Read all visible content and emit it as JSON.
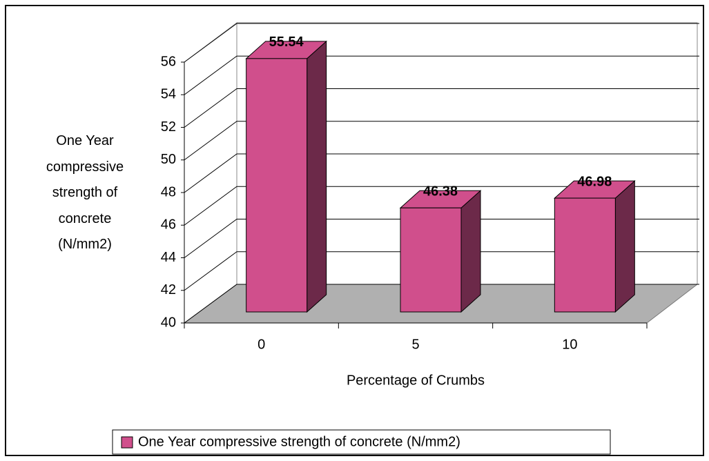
{
  "chart_data": {
    "type": "bar3d",
    "x_label": "Percentage of Crumbs",
    "y_label": "One Year compressive strength of concrete (N/mm2)",
    "categories": [
      "0",
      "5",
      "10"
    ],
    "series": [
      {
        "name": "One Year compressive strength of concrete (N/mm2)",
        "color": "#d04f8c",
        "values": [
          55.54,
          46.38,
          46.98
        ]
      }
    ],
    "ylim": [
      40,
      56
    ],
    "yticks": [
      40,
      42,
      44,
      46,
      48,
      50,
      52,
      54,
      56
    ],
    "grid": true,
    "legend": "bottom"
  }
}
